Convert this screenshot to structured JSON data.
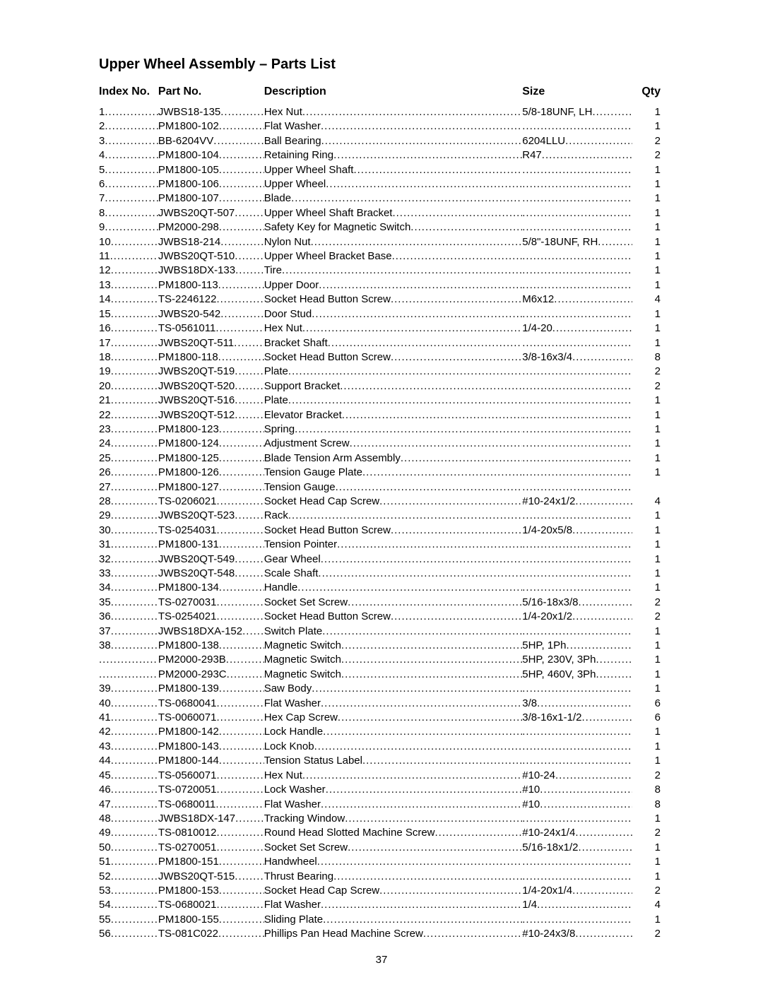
{
  "title": "Upper Wheel Assembly – Parts List",
  "headers": {
    "index": "Index No.",
    "part": "Part No.",
    "desc": "Description",
    "size": "Size",
    "qty": "Qty"
  },
  "page_number": "37",
  "rows": [
    {
      "index": "1",
      "part": "JWBS18-135",
      "desc": "Hex Nut",
      "size": "5/8-18UNF, LH",
      "qty": "1"
    },
    {
      "index": "2",
      "part": "PM1800-102",
      "desc": "Flat Washer",
      "size": "",
      "qty": "1"
    },
    {
      "index": "3",
      "part": "BB-6204VV",
      "desc": "Ball Bearing",
      "size": "6204LLU",
      "qty": "2"
    },
    {
      "index": "4",
      "part": "PM1800-104",
      "desc": "Retaining Ring",
      "size": "R47",
      "qty": "2"
    },
    {
      "index": "5",
      "part": "PM1800-105",
      "desc": "Upper Wheel Shaft",
      "size": "",
      "qty": "1"
    },
    {
      "index": "6",
      "part": "PM1800-106",
      "desc": "Upper Wheel",
      "size": "",
      "qty": "1"
    },
    {
      "index": "7",
      "part": "PM1800-107",
      "desc": "Blade",
      "size": "",
      "qty": "1"
    },
    {
      "index": "8",
      "part": "JWBS20QT-507",
      "desc": "Upper Wheel Shaft Bracket",
      "size": "",
      "qty": "1"
    },
    {
      "index": "9",
      "part": "PM2000-298",
      "desc": "Safety Key for Magnetic Switch",
      "size": "",
      "qty": "1"
    },
    {
      "index": "10",
      "part": "JWBS18-214",
      "desc": "Nylon Nut",
      "size": "5/8\"-18UNF, RH",
      "qty": "1"
    },
    {
      "index": "11",
      "part": "JWBS20QT-510",
      "desc": "Upper Wheel Bracket Base",
      "size": "",
      "qty": "1"
    },
    {
      "index": "12",
      "part": "JWBS18DX-133",
      "desc": "Tire",
      "size": "",
      "qty": "1"
    },
    {
      "index": "13",
      "part": "PM1800-113",
      "desc": "Upper Door",
      "size": "",
      "qty": "1"
    },
    {
      "index": "14",
      "part": "TS-2246122",
      "desc": "Socket Head Button Screw",
      "size": "M6x12",
      "qty": "4"
    },
    {
      "index": "15",
      "part": "JWBS20-542",
      "desc": "Door Stud",
      "size": "",
      "qty": "1"
    },
    {
      "index": "16",
      "part": "TS-0561011",
      "desc": "Hex Nut",
      "size": "1/4-20",
      "qty": "1"
    },
    {
      "index": "17",
      "part": "JWBS20QT-511",
      "desc": "Bracket Shaft",
      "size": "",
      "qty": "1"
    },
    {
      "index": "18",
      "part": "PM1800-118",
      "desc": "Socket Head Button Screw",
      "size": "3/8-16x3/4",
      "qty": "8"
    },
    {
      "index": "19",
      "part": "JWBS20QT-519",
      "desc": "Plate",
      "size": "",
      "qty": "2"
    },
    {
      "index": "20",
      "part": "JWBS20QT-520",
      "desc": "Support Bracket",
      "size": "",
      "qty": "2"
    },
    {
      "index": "21",
      "part": "JWBS20QT-516",
      "desc": "Plate",
      "size": "",
      "qty": "1"
    },
    {
      "index": "22",
      "part": "JWBS20QT-512",
      "desc": "Elevator Bracket",
      "size": "",
      "qty": "1"
    },
    {
      "index": "23",
      "part": "PM1800-123",
      "desc": "Spring",
      "size": "",
      "qty": "1"
    },
    {
      "index": "24",
      "part": "PM1800-124",
      "desc": "Adjustment Screw",
      "size": "",
      "qty": "1"
    },
    {
      "index": "25",
      "part": "PM1800-125",
      "desc": "Blade Tension Arm Assembly",
      "size": "",
      "qty": "1"
    },
    {
      "index": "26",
      "part": "PM1800-126",
      "desc": "Tension Gauge Plate",
      "size": "",
      "qty": "1"
    },
    {
      "index": "27",
      "part": "PM1800-127",
      "desc": "Tension Gauge",
      "size": "",
      "qty": ""
    },
    {
      "index": "28",
      "part": "TS-0206021",
      "desc": "Socket Head Cap Screw",
      "size": "#10-24x1/2",
      "qty": "4"
    },
    {
      "index": "29",
      "part": "JWBS20QT-523",
      "desc": "Rack",
      "size": "",
      "qty": "1"
    },
    {
      "index": "30",
      "part": "TS-0254031",
      "desc": "Socket Head Button Screw",
      "size": "1/4-20x5/8",
      "qty": "1"
    },
    {
      "index": "31",
      "part": "PM1800-131",
      "desc": "Tension Pointer",
      "size": "",
      "qty": "1"
    },
    {
      "index": "32",
      "part": "JWBS20QT-549",
      "desc": "Gear Wheel",
      "size": "",
      "qty": "1"
    },
    {
      "index": "33",
      "part": "JWBS20QT-548",
      "desc": "Scale Shaft",
      "size": "",
      "qty": "1"
    },
    {
      "index": "34",
      "part": "PM1800-134",
      "desc": "Handle",
      "size": "",
      "qty": "1"
    },
    {
      "index": "35",
      "part": "TS-0270031",
      "desc": "Socket Set Screw",
      "size": "5/16-18x3/8",
      "qty": "2"
    },
    {
      "index": "36",
      "part": "TS-0254021",
      "desc": "Socket Head Button Screw",
      "size": "1/4-20x1/2",
      "qty": "2"
    },
    {
      "index": "37",
      "part": "JWBS18DXA-152",
      "desc": "Switch Plate",
      "size": "",
      "qty": "1"
    },
    {
      "index": "38",
      "part": "PM1800-138",
      "desc": "Magnetic Switch",
      "size": "5HP, 1Ph",
      "qty": "1"
    },
    {
      "index": "",
      "part": "PM2000-293B",
      "desc": "Magnetic Switch",
      "size": "5HP, 230V, 3Ph",
      "qty": "1"
    },
    {
      "index": "",
      "part": "PM2000-293C",
      "desc": "Magnetic Switch",
      "size": "5HP, 460V, 3Ph",
      "qty": "1"
    },
    {
      "index": "39",
      "part": "PM1800-139",
      "desc": "Saw Body",
      "size": "",
      "qty": "1"
    },
    {
      "index": "40",
      "part": "TS-0680041",
      "desc": "Flat Washer",
      "size": "3/8",
      "qty": "6"
    },
    {
      "index": "41",
      "part": "TS-0060071",
      "desc": "Hex Cap Screw",
      "size": "3/8-16x1-1/2",
      "qty": "6"
    },
    {
      "index": "42",
      "part": "PM1800-142",
      "desc": "Lock Handle",
      "size": "",
      "qty": "1"
    },
    {
      "index": "43",
      "part": "PM1800-143",
      "desc": "Lock Knob",
      "size": "",
      "qty": "1"
    },
    {
      "index": "44",
      "part": "PM1800-144",
      "desc": "Tension Status Label",
      "size": "",
      "qty": "1"
    },
    {
      "index": "45",
      "part": "TS-0560071",
      "desc": "Hex Nut",
      "size": "#10-24",
      "qty": "2"
    },
    {
      "index": "46",
      "part": "TS-0720051",
      "desc": "Lock Washer",
      "size": "#10",
      "qty": "8"
    },
    {
      "index": "47",
      "part": "TS-0680011",
      "desc": "Flat Washer",
      "size": "#10",
      "qty": "8"
    },
    {
      "index": "48",
      "part": "JWBS18DX-147",
      "desc": "Tracking Window",
      "size": "",
      "qty": "1"
    },
    {
      "index": "49",
      "part": "TS-0810012",
      "desc": "Round Head Slotted Machine Screw",
      "size": "#10-24x1/4",
      "qty": "2"
    },
    {
      "index": "50",
      "part": "TS-0270051",
      "desc": "Socket Set Screw",
      "size": "5/16-18x1/2",
      "qty": "1"
    },
    {
      "index": "51",
      "part": "PM1800-151",
      "desc": "Handwheel",
      "size": "",
      "qty": "1"
    },
    {
      "index": "52",
      "part": "JWBS20QT-515",
      "desc": "Thrust Bearing",
      "size": "",
      "qty": "1"
    },
    {
      "index": "53",
      "part": "PM1800-153",
      "desc": "Socket Head Cap Screw",
      "size": "1/4-20x1/4",
      "qty": "2"
    },
    {
      "index": "54",
      "part": "TS-0680021",
      "desc": "Flat Washer",
      "size": "1/4",
      "qty": "4"
    },
    {
      "index": "55",
      "part": "PM1800-155",
      "desc": "Sliding Plate",
      "size": "",
      "qty": "1"
    },
    {
      "index": "56",
      "part": "TS-081C022",
      "desc": "Phillips Pan Head Machine Screw",
      "size": "#10-24x3/8",
      "qty": "2"
    }
  ]
}
